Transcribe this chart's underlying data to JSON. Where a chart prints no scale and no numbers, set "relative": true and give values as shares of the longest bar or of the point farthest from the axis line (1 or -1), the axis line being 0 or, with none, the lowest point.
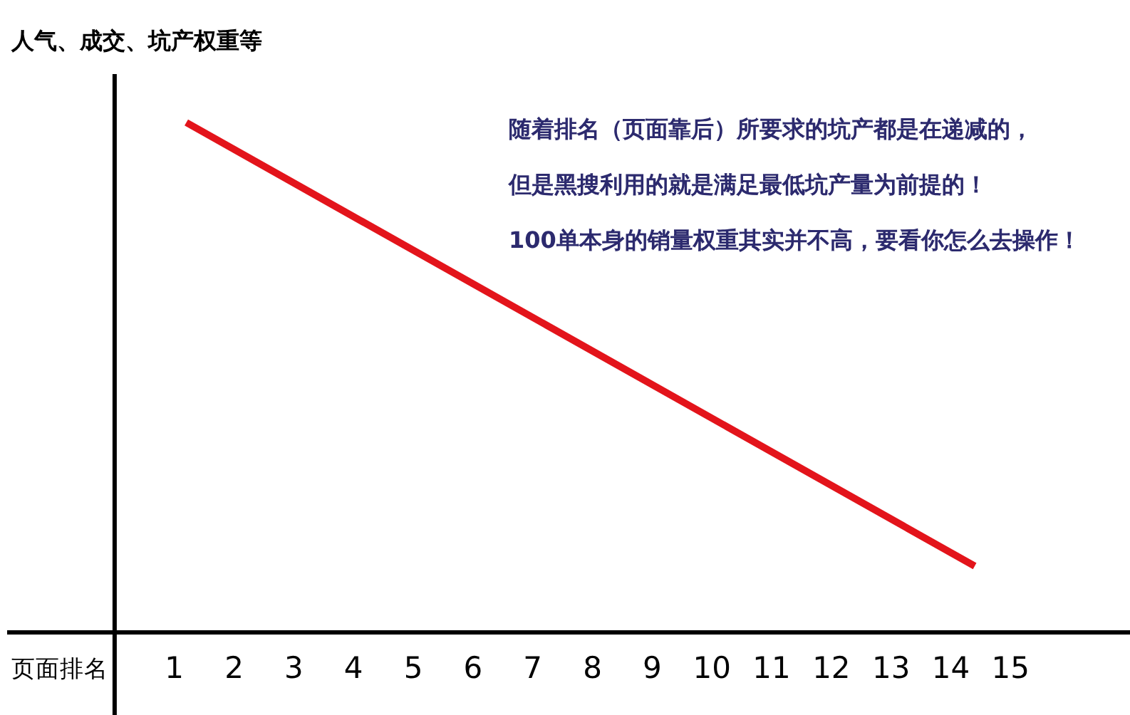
{
  "chart_data": {
    "type": "line",
    "ylabel": "人气、成交、坑产权重等",
    "xlabel": "页面排名",
    "annotations": [
      "随着排名（页面靠后）所要求的坑产都是在递减的，",
      "但是黑搜利用的就是满足最低坑产量为前提的！",
      "100单本身的销量权重其实并不高，要看你怎么去操作！"
    ],
    "relative": true,
    "xlim": [
      -1.8,
      17
    ],
    "xticks": [
      1,
      2,
      3,
      4,
      5,
      6,
      7,
      8,
      9,
      10,
      11,
      12,
      13,
      14,
      15
    ],
    "x": [
      1.2,
      14.4
    ],
    "values": [
      1,
      0.13
    ],
    "color": "#e3141b"
  }
}
